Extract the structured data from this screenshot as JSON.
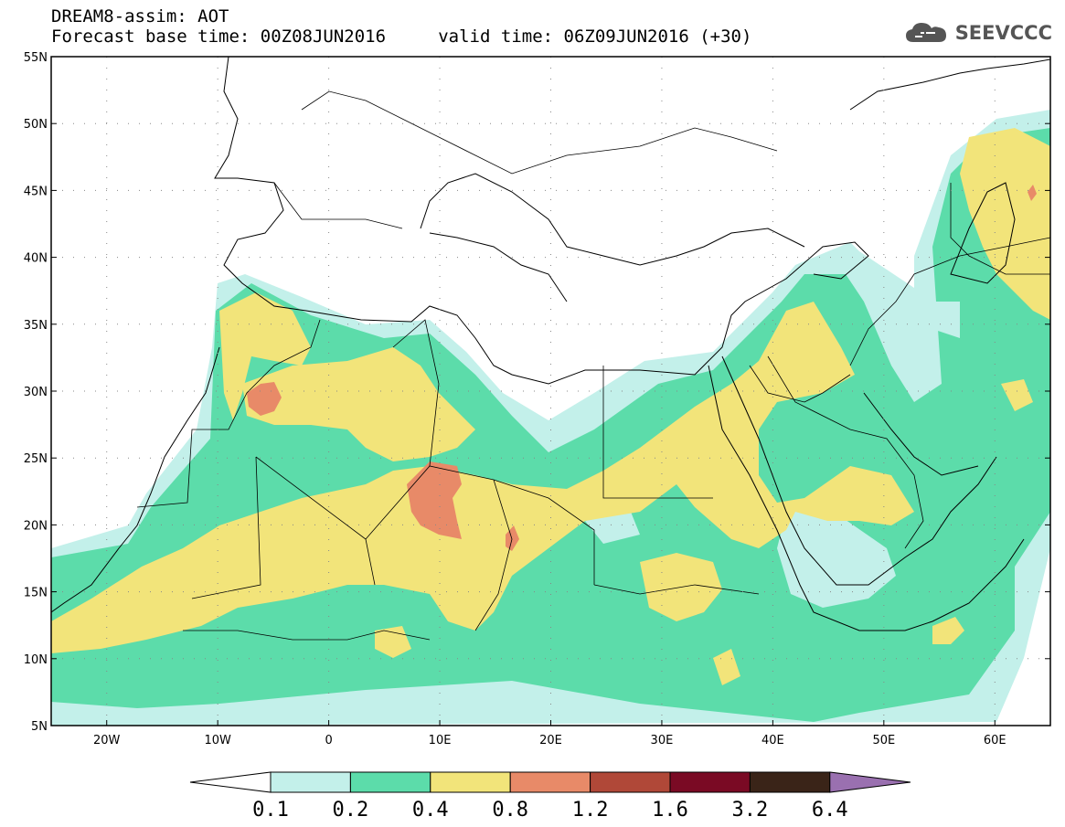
{
  "header": {
    "title_line1": "DREAM8-assim: AOT",
    "title_line2": "Forecast base time: 00Z08JUN2016     valid time: 06Z09JUN2016 (+30)"
  },
  "logo": {
    "text": "SEEVCCC",
    "icon": "cloud-icon"
  },
  "map": {
    "lon_range": [
      -25,
      65
    ],
    "lat_range": [
      5,
      55
    ],
    "lat_labels": [
      "5N",
      "10N",
      "15N",
      "20N",
      "25N",
      "30N",
      "35N",
      "40N",
      "45N",
      "50N",
      "55N"
    ],
    "lon_labels": [
      "20W",
      "10W",
      "0",
      "10E",
      "20E",
      "30E",
      "40E",
      "50E",
      "60E"
    ],
    "lat_values": [
      5,
      10,
      15,
      20,
      25,
      30,
      35,
      40,
      45,
      50,
      55
    ],
    "lon_values": [
      -20,
      -10,
      0,
      10,
      20,
      30,
      40,
      50,
      60
    ]
  },
  "colorbar": {
    "levels": [
      "0.1",
      "0.2",
      "0.4",
      "0.8",
      "1.2",
      "1.6",
      "3.2",
      "6.4"
    ],
    "colors": [
      "#ffffff",
      "#c3f0ea",
      "#5cdcaa",
      "#f2e47a",
      "#e88a68",
      "#b04838",
      "#7a0a24",
      "#3a2418",
      "#9a70b0"
    ]
  },
  "colors": {
    "c1": "#c3f0ea",
    "c2": "#5cdcaa",
    "c3": "#f2e47a",
    "c4": "#e88a68"
  }
}
